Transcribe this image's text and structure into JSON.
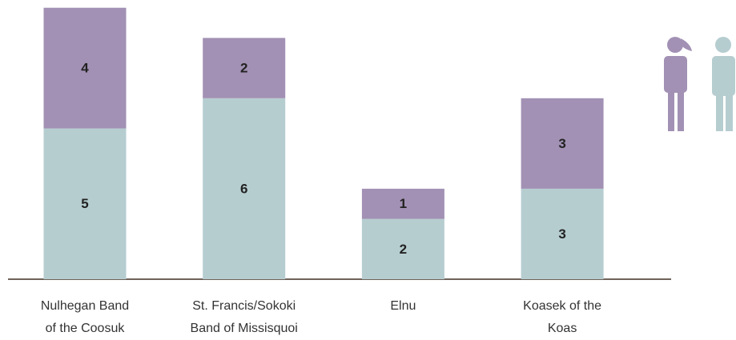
{
  "chart_data": {
    "type": "stacked_bar",
    "categories": [
      "Nulhegan Band\nof the Coosuk",
      "St. Francis/Sokoki\nBand of Missisquoi",
      "Elnu",
      "Koasek of the\nKoas"
    ],
    "series": [
      {
        "color": "#b6cdd0",
        "values": [
          5,
          6,
          2,
          3
        ]
      },
      {
        "color": "#a291b4",
        "values": [
          4,
          2,
          1,
          3
        ]
      }
    ]
  }
}
